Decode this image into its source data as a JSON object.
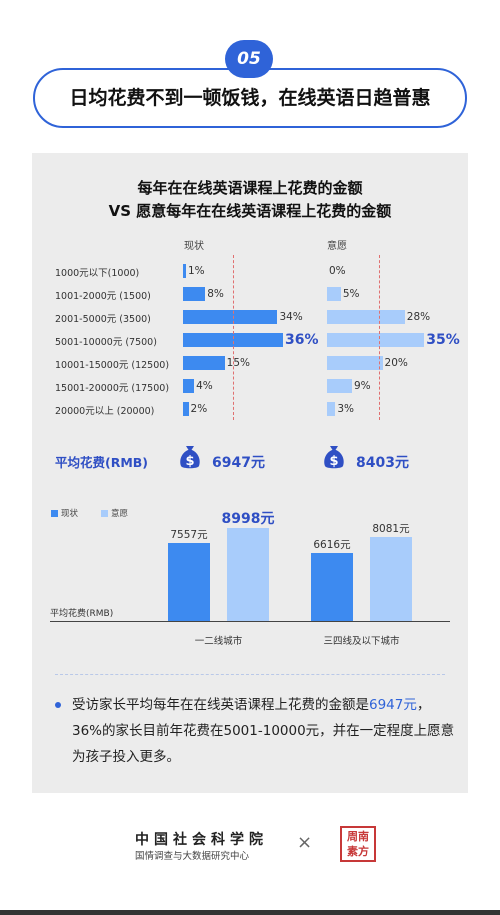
{
  "badge": "05",
  "headline": "日均花费不到一顿饭钱，在线英语日趋普惠",
  "chart_title_line1": "每年在在线英语课程上花费的金额",
  "chart_title_line2": "VS 愿意每年在在线英语课程上花费的金额",
  "avg_label": "平均花费(RMB)",
  "avg_now": "6947元",
  "avg_will": "8403元",
  "colors": {
    "now": "#3d8af0",
    "will": "#a8ccfb",
    "accent": "#2f63d8"
  },
  "chart_data": [
    {
      "type": "bar",
      "orientation": "horizontal",
      "categories": [
        "1000元以下(1000)",
        "1001-2000元 (1500)",
        "2001-5000元 (3500)",
        "5001-10000元 (7500)",
        "10001-15000元 (12500)",
        "15001-20000元 (17500)",
        "20000元以上 (20000)"
      ],
      "series": [
        {
          "name": "现状",
          "values": [
            1,
            8,
            34,
            36,
            15,
            4,
            2
          ],
          "labels": [
            "1%",
            "8%",
            "34%",
            "36%",
            "15%",
            "4%",
            "2%"
          ],
          "highlight_index": 3
        },
        {
          "name": "意愿",
          "values": [
            0,
            5,
            28,
            35,
            20,
            9,
            3
          ],
          "labels": [
            "0%",
            "5%",
            "28%",
            "35%",
            "20%",
            "9%",
            "3%"
          ],
          "highlight_index": 3
        }
      ],
      "reference_lines": {
        "现状": 6947,
        "意愿": 8403
      },
      "unit": "%"
    },
    {
      "type": "bar",
      "categories": [
        "一二线城市",
        "三四线及以下城市"
      ],
      "series": [
        {
          "name": "现状",
          "values": [
            7557,
            6616
          ],
          "labels": [
            "7557元",
            "6616元"
          ]
        },
        {
          "name": "意愿",
          "values": [
            8998,
            8081
          ],
          "labels": [
            "8998元",
            "8081元"
          ]
        }
      ],
      "highlight_label": "8998元",
      "ylabel": "平均花费(RMB)",
      "legend": "top-left"
    }
  ],
  "note_prefix": "受访家长平均每年在在线英语课程上花费的金额是",
  "note_hl": "6947元",
  "note_suffix": "，36%的家长目前年花费在5001-10000元，并在一定程度上愿意为孩子投入更多。",
  "org_name": "中国社会科学院",
  "org_sub": "国情调查与大数据研究中心",
  "times_sign": "×",
  "seal_text": "周南素方"
}
